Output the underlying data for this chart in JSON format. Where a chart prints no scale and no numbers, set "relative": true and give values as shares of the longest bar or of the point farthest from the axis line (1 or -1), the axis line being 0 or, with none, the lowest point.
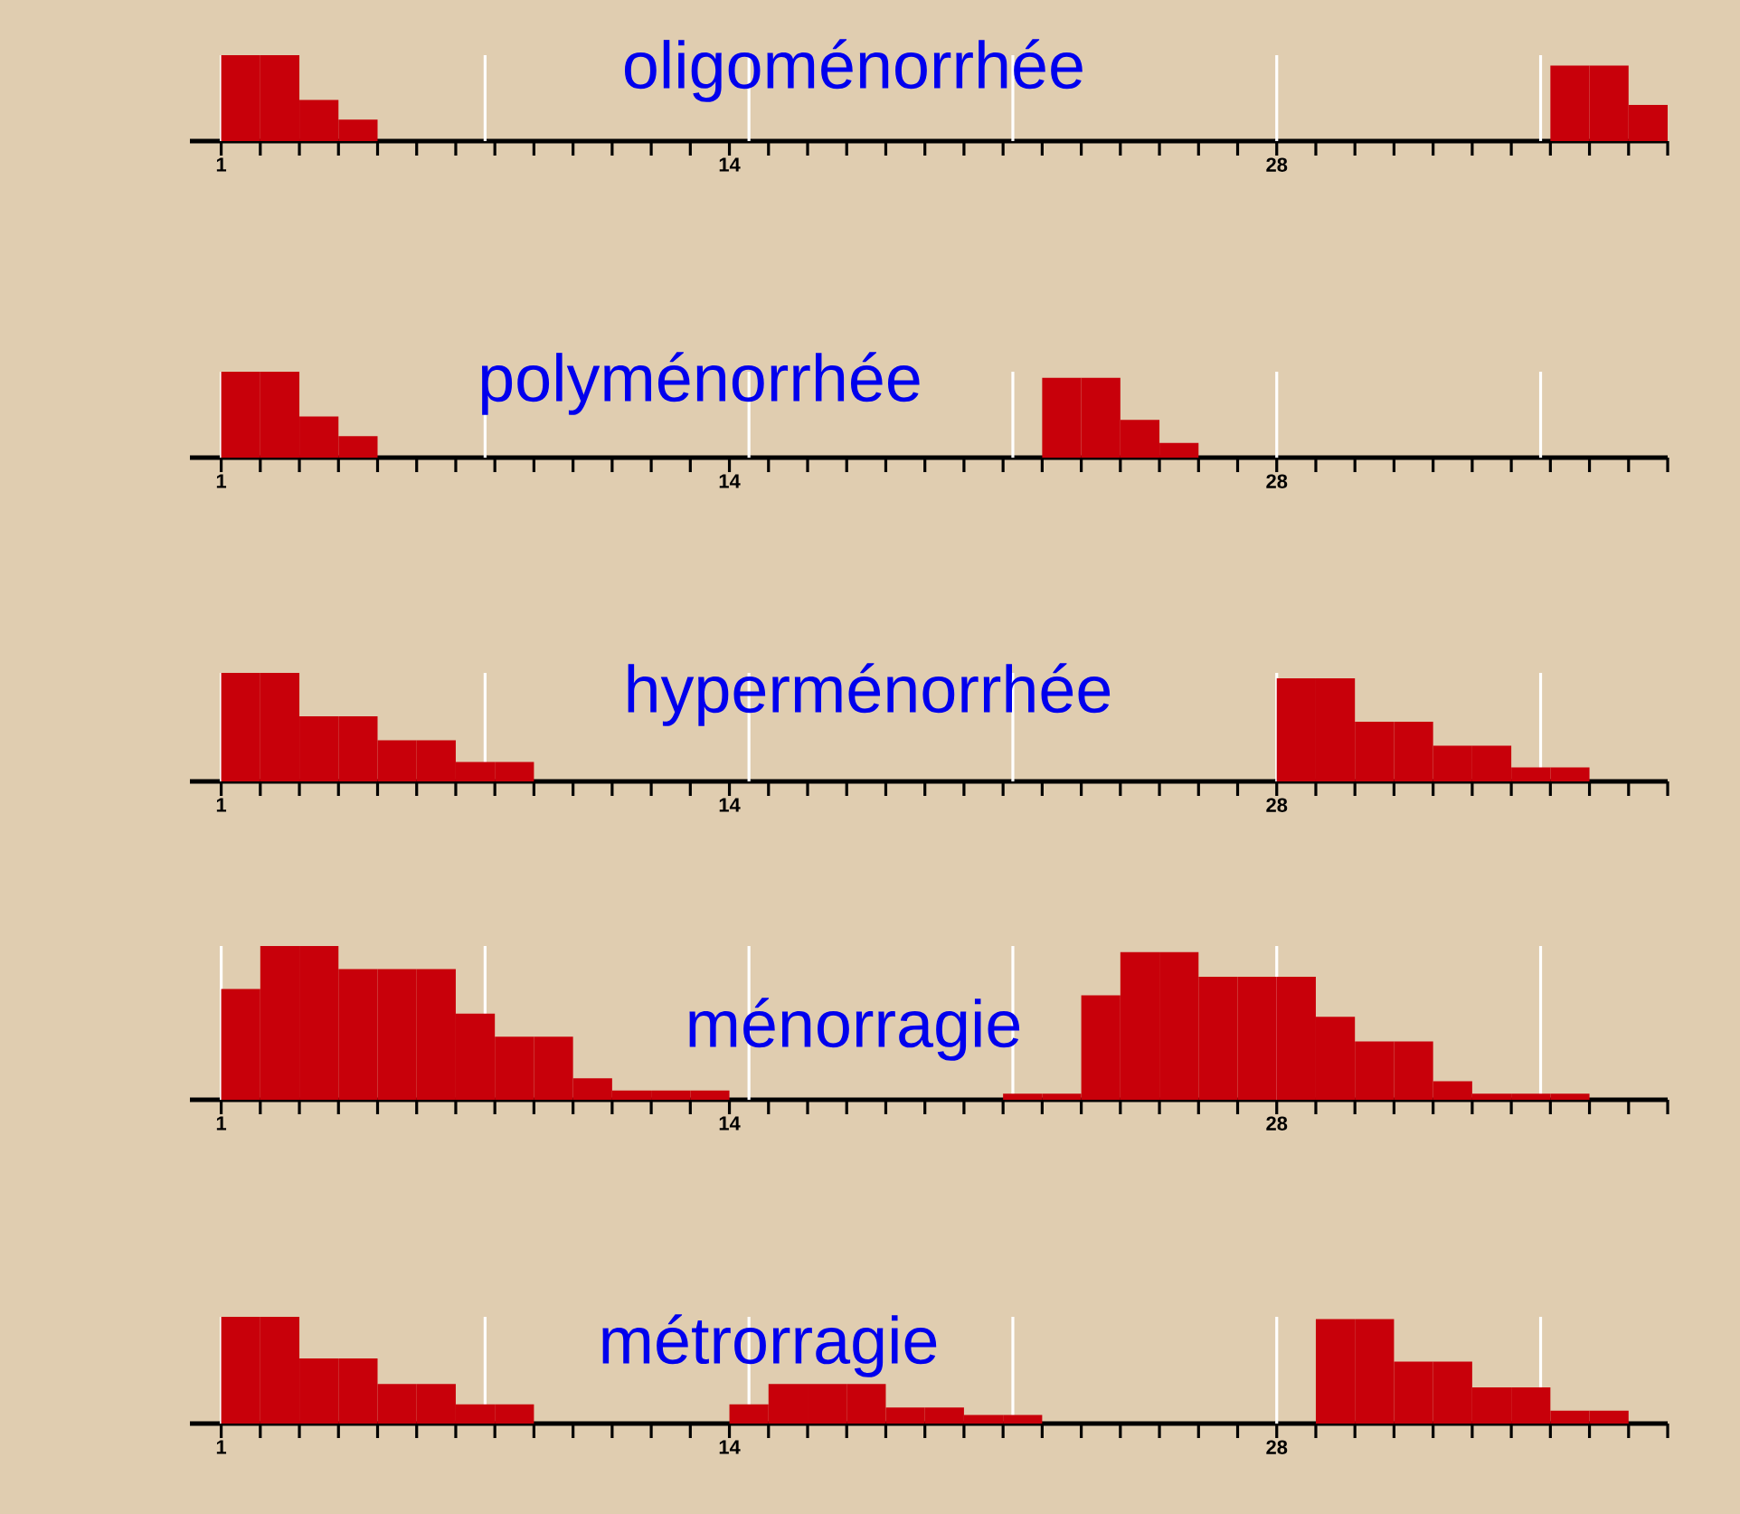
{
  "chart_data": [
    {
      "type": "bar",
      "title": "oligoménorrhée",
      "relative": true,
      "color": "#c8000a",
      "xlim": [
        0.2,
        38
      ],
      "xticks": [
        1,
        {
          "value": 2,
          "label": null
        },
        {
          "value": 3,
          "label": null
        },
        {
          "value": 4,
          "label": null
        },
        {
          "value": 5,
          "label": null
        },
        {
          "value": 6,
          "label": null
        },
        {
          "value": 7,
          "label": null
        },
        {
          "value": 8,
          "label": null
        },
        {
          "value": 9,
          "label": null
        },
        {
          "value": 10,
          "label": null
        },
        {
          "value": 11,
          "label": null
        },
        {
          "value": 12,
          "label": null
        },
        {
          "value": 13,
          "label": null
        },
        14,
        {
          "value": 15,
          "label": null
        },
        {
          "value": 16,
          "label": null
        },
        {
          "value": 17,
          "label": null
        },
        {
          "value": 18,
          "label": null
        },
        {
          "value": 19,
          "label": null
        },
        {
          "value": 20,
          "label": null
        },
        {
          "value": 21,
          "label": null
        },
        {
          "value": 22,
          "label": null
        },
        {
          "value": 23,
          "label": null
        },
        {
          "value": 24,
          "label": null
        },
        {
          "value": 25,
          "label": null
        },
        {
          "value": 26,
          "label": null
        },
        {
          "value": 27,
          "label": null
        },
        28,
        {
          "value": 29,
          "label": null
        },
        {
          "value": 30,
          "label": null
        },
        {
          "value": 31,
          "label": null
        },
        {
          "value": 32,
          "label": null
        },
        {
          "value": 33,
          "label": null
        },
        {
          "value": 34,
          "label": null
        },
        {
          "value": 35,
          "label": null
        },
        {
          "value": 36,
          "label": null
        },
        {
          "value": 37,
          "label": null
        },
        {
          "value": 38,
          "label": null
        }
      ],
      "ref_lines": [
        {
          "axis": "x",
          "value": 1,
          "color": "#ffffff"
        },
        {
          "axis": "x",
          "value": 7.75,
          "color": "#ffffff"
        },
        {
          "axis": "x",
          "value": 14.5,
          "color": "#ffffff"
        },
        {
          "axis": "x",
          "value": 21.25,
          "color": "#ffffff"
        },
        {
          "axis": "x",
          "value": 28,
          "color": "#ffffff"
        },
        {
          "axis": "x",
          "value": 34.75,
          "color": "#ffffff"
        }
      ],
      "x": [
        1.5,
        2.5,
        3.5,
        4.5,
        35.5,
        36.5,
        37.5
      ],
      "values": [
        1,
        1,
        0.48,
        0.25,
        0.88,
        0.88,
        0.42
      ]
    },
    {
      "type": "bar",
      "title": "polyménorrhée",
      "relative": true,
      "color": "#c8000a",
      "xlim": [
        0.2,
        38
      ],
      "xticks": [
        1,
        {
          "value": 2,
          "label": null
        },
        {
          "value": 3,
          "label": null
        },
        {
          "value": 4,
          "label": null
        },
        {
          "value": 5,
          "label": null
        },
        {
          "value": 6,
          "label": null
        },
        {
          "value": 7,
          "label": null
        },
        {
          "value": 8,
          "label": null
        },
        {
          "value": 9,
          "label": null
        },
        {
          "value": 10,
          "label": null
        },
        {
          "value": 11,
          "label": null
        },
        {
          "value": 12,
          "label": null
        },
        {
          "value": 13,
          "label": null
        },
        14,
        {
          "value": 15,
          "label": null
        },
        {
          "value": 16,
          "label": null
        },
        {
          "value": 17,
          "label": null
        },
        {
          "value": 18,
          "label": null
        },
        {
          "value": 19,
          "label": null
        },
        {
          "value": 20,
          "label": null
        },
        {
          "value": 21,
          "label": null
        },
        {
          "value": 22,
          "label": null
        },
        {
          "value": 23,
          "label": null
        },
        {
          "value": 24,
          "label": null
        },
        {
          "value": 25,
          "label": null
        },
        {
          "value": 26,
          "label": null
        },
        {
          "value": 27,
          "label": null
        },
        28,
        {
          "value": 29,
          "label": null
        },
        {
          "value": 30,
          "label": null
        },
        {
          "value": 31,
          "label": null
        },
        {
          "value": 32,
          "label": null
        },
        {
          "value": 33,
          "label": null
        },
        {
          "value": 34,
          "label": null
        },
        {
          "value": 35,
          "label": null
        },
        {
          "value": 36,
          "label": null
        },
        {
          "value": 37,
          "label": null
        },
        {
          "value": 38,
          "label": null
        }
      ],
      "ref_lines": [
        {
          "axis": "x",
          "value": 1,
          "color": "#ffffff"
        },
        {
          "axis": "x",
          "value": 7.75,
          "color": "#ffffff"
        },
        {
          "axis": "x",
          "value": 14.5,
          "color": "#ffffff"
        },
        {
          "axis": "x",
          "value": 21.25,
          "color": "#ffffff"
        },
        {
          "axis": "x",
          "value": 28,
          "color": "#ffffff"
        },
        {
          "axis": "x",
          "value": 34.75,
          "color": "#ffffff"
        }
      ],
      "x": [
        1.5,
        2.5,
        3.5,
        4.5,
        22.5,
        23.5,
        24.5,
        25.5
      ],
      "values": [
        1,
        1,
        0.48,
        0.25,
        0.93,
        0.93,
        0.44,
        0.17
      ]
    },
    {
      "type": "bar",
      "title": "hyperménorrhée",
      "relative": true,
      "color": "#c8000a",
      "xlim": [
        0.2,
        38
      ],
      "xticks": [
        1,
        {
          "value": 2,
          "label": null
        },
        {
          "value": 3,
          "label": null
        },
        {
          "value": 4,
          "label": null
        },
        {
          "value": 5,
          "label": null
        },
        {
          "value": 6,
          "label": null
        },
        {
          "value": 7,
          "label": null
        },
        {
          "value": 8,
          "label": null
        },
        {
          "value": 9,
          "label": null
        },
        {
          "value": 10,
          "label": null
        },
        {
          "value": 11,
          "label": null
        },
        {
          "value": 12,
          "label": null
        },
        {
          "value": 13,
          "label": null
        },
        14,
        {
          "value": 15,
          "label": null
        },
        {
          "value": 16,
          "label": null
        },
        {
          "value": 17,
          "label": null
        },
        {
          "value": 18,
          "label": null
        },
        {
          "value": 19,
          "label": null
        },
        {
          "value": 20,
          "label": null
        },
        {
          "value": 21,
          "label": null
        },
        {
          "value": 22,
          "label": null
        },
        {
          "value": 23,
          "label": null
        },
        {
          "value": 24,
          "label": null
        },
        {
          "value": 25,
          "label": null
        },
        {
          "value": 26,
          "label": null
        },
        {
          "value": 27,
          "label": null
        },
        28,
        {
          "value": 29,
          "label": null
        },
        {
          "value": 30,
          "label": null
        },
        {
          "value": 31,
          "label": null
        },
        {
          "value": 32,
          "label": null
        },
        {
          "value": 33,
          "label": null
        },
        {
          "value": 34,
          "label": null
        },
        {
          "value": 35,
          "label": null
        },
        {
          "value": 36,
          "label": null
        },
        {
          "value": 37,
          "label": null
        },
        {
          "value": 38,
          "label": null
        }
      ],
      "ref_lines": [
        {
          "axis": "x",
          "value": 1,
          "color": "#ffffff"
        },
        {
          "axis": "x",
          "value": 7.75,
          "color": "#ffffff"
        },
        {
          "axis": "x",
          "value": 14.5,
          "color": "#ffffff"
        },
        {
          "axis": "x",
          "value": 21.25,
          "color": "#ffffff"
        },
        {
          "axis": "x",
          "value": 28,
          "color": "#ffffff"
        },
        {
          "axis": "x",
          "value": 34.75,
          "color": "#ffffff"
        }
      ],
      "x": [
        1.5,
        2.5,
        3.5,
        4.5,
        5.5,
        6.5,
        7.5,
        8.5,
        28.5,
        29.5,
        30.5,
        31.5,
        32.5,
        33.5,
        34.5,
        35.5
      ],
      "values": [
        1,
        1,
        0.6,
        0.6,
        0.38,
        0.38,
        0.18,
        0.18,
        0.95,
        0.95,
        0.55,
        0.55,
        0.33,
        0.33,
        0.13,
        0.13
      ]
    },
    {
      "type": "bar",
      "title": "ménorragie",
      "relative": true,
      "color": "#c8000a",
      "xlim": [
        0.2,
        38
      ],
      "xticks": [
        1,
        {
          "value": 2,
          "label": null
        },
        {
          "value": 3,
          "label": null
        },
        {
          "value": 4,
          "label": null
        },
        {
          "value": 5,
          "label": null
        },
        {
          "value": 6,
          "label": null
        },
        {
          "value": 7,
          "label": null
        },
        {
          "value": 8,
          "label": null
        },
        {
          "value": 9,
          "label": null
        },
        {
          "value": 10,
          "label": null
        },
        {
          "value": 11,
          "label": null
        },
        {
          "value": 12,
          "label": null
        },
        {
          "value": 13,
          "label": null
        },
        14,
        {
          "value": 15,
          "label": null
        },
        {
          "value": 16,
          "label": null
        },
        {
          "value": 17,
          "label": null
        },
        {
          "value": 18,
          "label": null
        },
        {
          "value": 19,
          "label": null
        },
        {
          "value": 20,
          "label": null
        },
        {
          "value": 21,
          "label": null
        },
        {
          "value": 22,
          "label": null
        },
        {
          "value": 23,
          "label": null
        },
        {
          "value": 24,
          "label": null
        },
        {
          "value": 25,
          "label": null
        },
        {
          "value": 26,
          "label": null
        },
        {
          "value": 27,
          "label": null
        },
        28,
        {
          "value": 29,
          "label": null
        },
        {
          "value": 30,
          "label": null
        },
        {
          "value": 31,
          "label": null
        },
        {
          "value": 32,
          "label": null
        },
        {
          "value": 33,
          "label": null
        },
        {
          "value": 34,
          "label": null
        },
        {
          "value": 35,
          "label": null
        },
        {
          "value": 36,
          "label": null
        },
        {
          "value": 37,
          "label": null
        },
        {
          "value": 38,
          "label": null
        }
      ],
      "ref_lines": [
        {
          "axis": "x",
          "value": 1,
          "color": "#ffffff"
        },
        {
          "axis": "x",
          "value": 7.75,
          "color": "#ffffff"
        },
        {
          "axis": "x",
          "value": 14.5,
          "color": "#ffffff"
        },
        {
          "axis": "x",
          "value": 21.25,
          "color": "#ffffff"
        },
        {
          "axis": "x",
          "value": 28,
          "color": "#ffffff"
        },
        {
          "axis": "x",
          "value": 34.75,
          "color": "#ffffff"
        }
      ],
      "x": [
        1.5,
        2.5,
        3.5,
        4.5,
        5.5,
        6.5,
        7.5,
        8.5,
        9.5,
        10.5,
        11.5,
        12.5,
        13.5,
        21.5,
        22.5,
        23.5,
        24.5,
        25.5,
        26.5,
        27.5,
        28.5,
        29.5,
        30.5,
        31.5,
        32.5,
        33.5,
        34.5,
        35.5
      ],
      "values": [
        0.72,
        1,
        1,
        0.85,
        0.85,
        0.85,
        0.56,
        0.41,
        0.41,
        0.14,
        0.06,
        0.06,
        0.06,
        0.04,
        0.04,
        0.68,
        0.96,
        0.96,
        0.8,
        0.8,
        0.8,
        0.54,
        0.38,
        0.38,
        0.12,
        0.04,
        0.04,
        0.04
      ]
    },
    {
      "type": "bar",
      "title": "métrorragie",
      "relative": true,
      "color": "#c8000a",
      "xlim": [
        0.2,
        38
      ],
      "xticks": [
        1,
        {
          "value": 2,
          "label": null
        },
        {
          "value": 3,
          "label": null
        },
        {
          "value": 4,
          "label": null
        },
        {
          "value": 5,
          "label": null
        },
        {
          "value": 6,
          "label": null
        },
        {
          "value": 7,
          "label": null
        },
        {
          "value": 8,
          "label": null
        },
        {
          "value": 9,
          "label": null
        },
        {
          "value": 10,
          "label": null
        },
        {
          "value": 11,
          "label": null
        },
        {
          "value": 12,
          "label": null
        },
        {
          "value": 13,
          "label": null
        },
        14,
        {
          "value": 15,
          "label": null
        },
        {
          "value": 16,
          "label": null
        },
        {
          "value": 17,
          "label": null
        },
        {
          "value": 18,
          "label": null
        },
        {
          "value": 19,
          "label": null
        },
        {
          "value": 20,
          "label": null
        },
        {
          "value": 21,
          "label": null
        },
        {
          "value": 22,
          "label": null
        },
        {
          "value": 23,
          "label": null
        },
        {
          "value": 24,
          "label": null
        },
        {
          "value": 25,
          "label": null
        },
        {
          "value": 26,
          "label": null
        },
        {
          "value": 27,
          "label": null
        },
        28,
        {
          "value": 29,
          "label": null
        },
        {
          "value": 30,
          "label": null
        },
        {
          "value": 31,
          "label": null
        },
        {
          "value": 32,
          "label": null
        },
        {
          "value": 33,
          "label": null
        },
        {
          "value": 34,
          "label": null
        },
        {
          "value": 35,
          "label": null
        },
        {
          "value": 36,
          "label": null
        },
        {
          "value": 37,
          "label": null
        },
        {
          "value": 38,
          "label": null
        }
      ],
      "ref_lines": [
        {
          "axis": "x",
          "value": 1,
          "color": "#ffffff"
        },
        {
          "axis": "x",
          "value": 7.75,
          "color": "#ffffff"
        },
        {
          "axis": "x",
          "value": 14.5,
          "color": "#ffffff"
        },
        {
          "axis": "x",
          "value": 21.25,
          "color": "#ffffff"
        },
        {
          "axis": "x",
          "value": 28,
          "color": "#ffffff"
        },
        {
          "axis": "x",
          "value": 34.75,
          "color": "#ffffff"
        }
      ],
      "x": [
        1.5,
        2.5,
        3.5,
        4.5,
        5.5,
        6.5,
        7.5,
        8.5,
        14.5,
        15.5,
        16.5,
        17.5,
        18.5,
        19.5,
        20.5,
        21.5,
        29.5,
        30.5,
        31.5,
        32.5,
        33.5,
        34.5,
        35.5,
        36.5
      ],
      "values": [
        1,
        1,
        0.61,
        0.61,
        0.37,
        0.37,
        0.18,
        0.18,
        0.18,
        0.37,
        0.37,
        0.37,
        0.15,
        0.15,
        0.08,
        0.08,
        0.98,
        0.98,
        0.58,
        0.58,
        0.34,
        0.34,
        0.12,
        0.12
      ]
    }
  ]
}
